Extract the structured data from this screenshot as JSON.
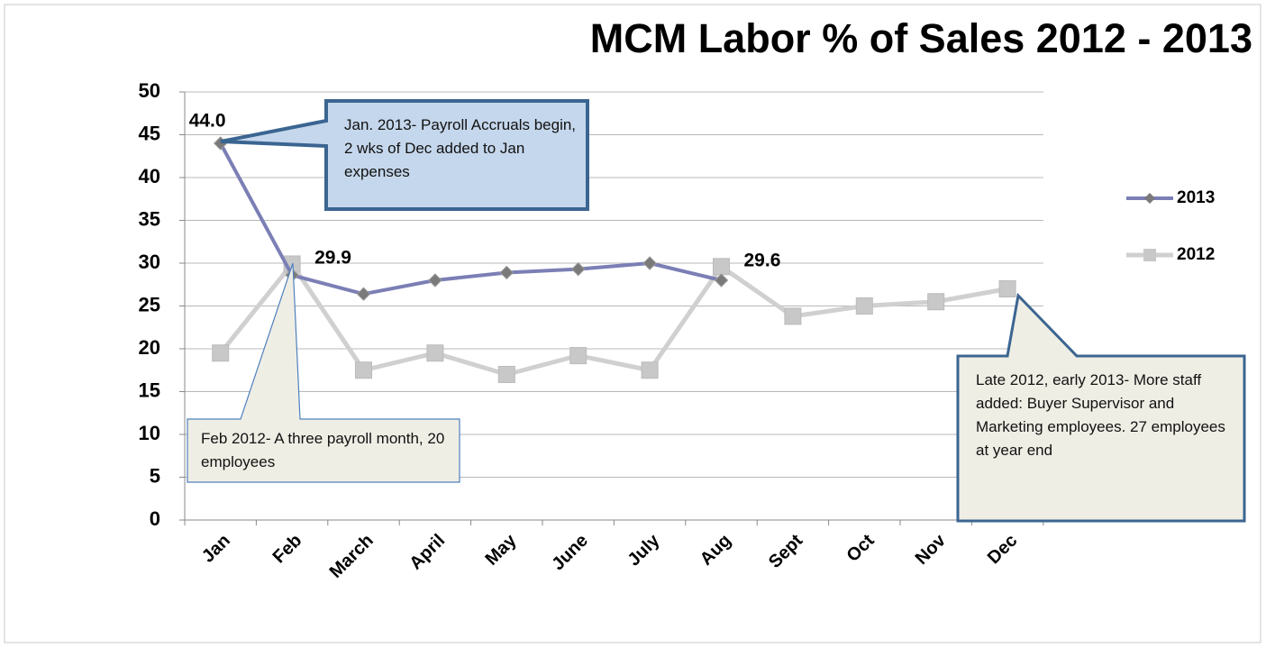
{
  "chart_data": {
    "type": "line",
    "title": "MCM Labor % of Sales 2012 - 2013",
    "categories": [
      "Jan",
      "Feb",
      "March",
      "April",
      "May",
      "June",
      "July",
      "Aug",
      "Sept",
      "Oct",
      "Nov",
      "Dec"
    ],
    "series": [
      {
        "name": "2013",
        "color": "#7b7fb5",
        "marker_color": "#7a7a7a",
        "values": [
          44.0,
          28.6,
          26.4,
          28.0,
          28.9,
          29.3,
          30.0,
          28.0,
          null,
          null,
          null,
          null
        ],
        "value_labels": [
          "44.0",
          null,
          null,
          null,
          null,
          null,
          null,
          null,
          null,
          null,
          null,
          null
        ]
      },
      {
        "name": "2012",
        "color": "#d0d0d0",
        "marker_color": "#c8c8c8",
        "values": [
          19.5,
          29.9,
          17.5,
          19.5,
          17.0,
          19.2,
          17.5,
          29.6,
          23.8,
          25.0,
          25.5,
          27.0
        ],
        "value_labels": [
          null,
          "29.9",
          null,
          null,
          null,
          null,
          null,
          "29.6",
          null,
          null,
          null,
          null
        ]
      }
    ],
    "ylim": [
      0,
      50
    ],
    "yticks": [
      0,
      5,
      10,
      15,
      20,
      25,
      30,
      35,
      40,
      45,
      50
    ],
    "grid": true,
    "legend": "right",
    "annotations": [
      "Jan. 2013- Payroll Accruals begin, 2 wks of Dec added to Jan expenses",
      "Feb 2012- A three payroll month, 20 employees",
      "Late 2012, early 2013- More staff added:  Buyer Supervisor  and Marketing employees.  27 employees at year end"
    ]
  }
}
